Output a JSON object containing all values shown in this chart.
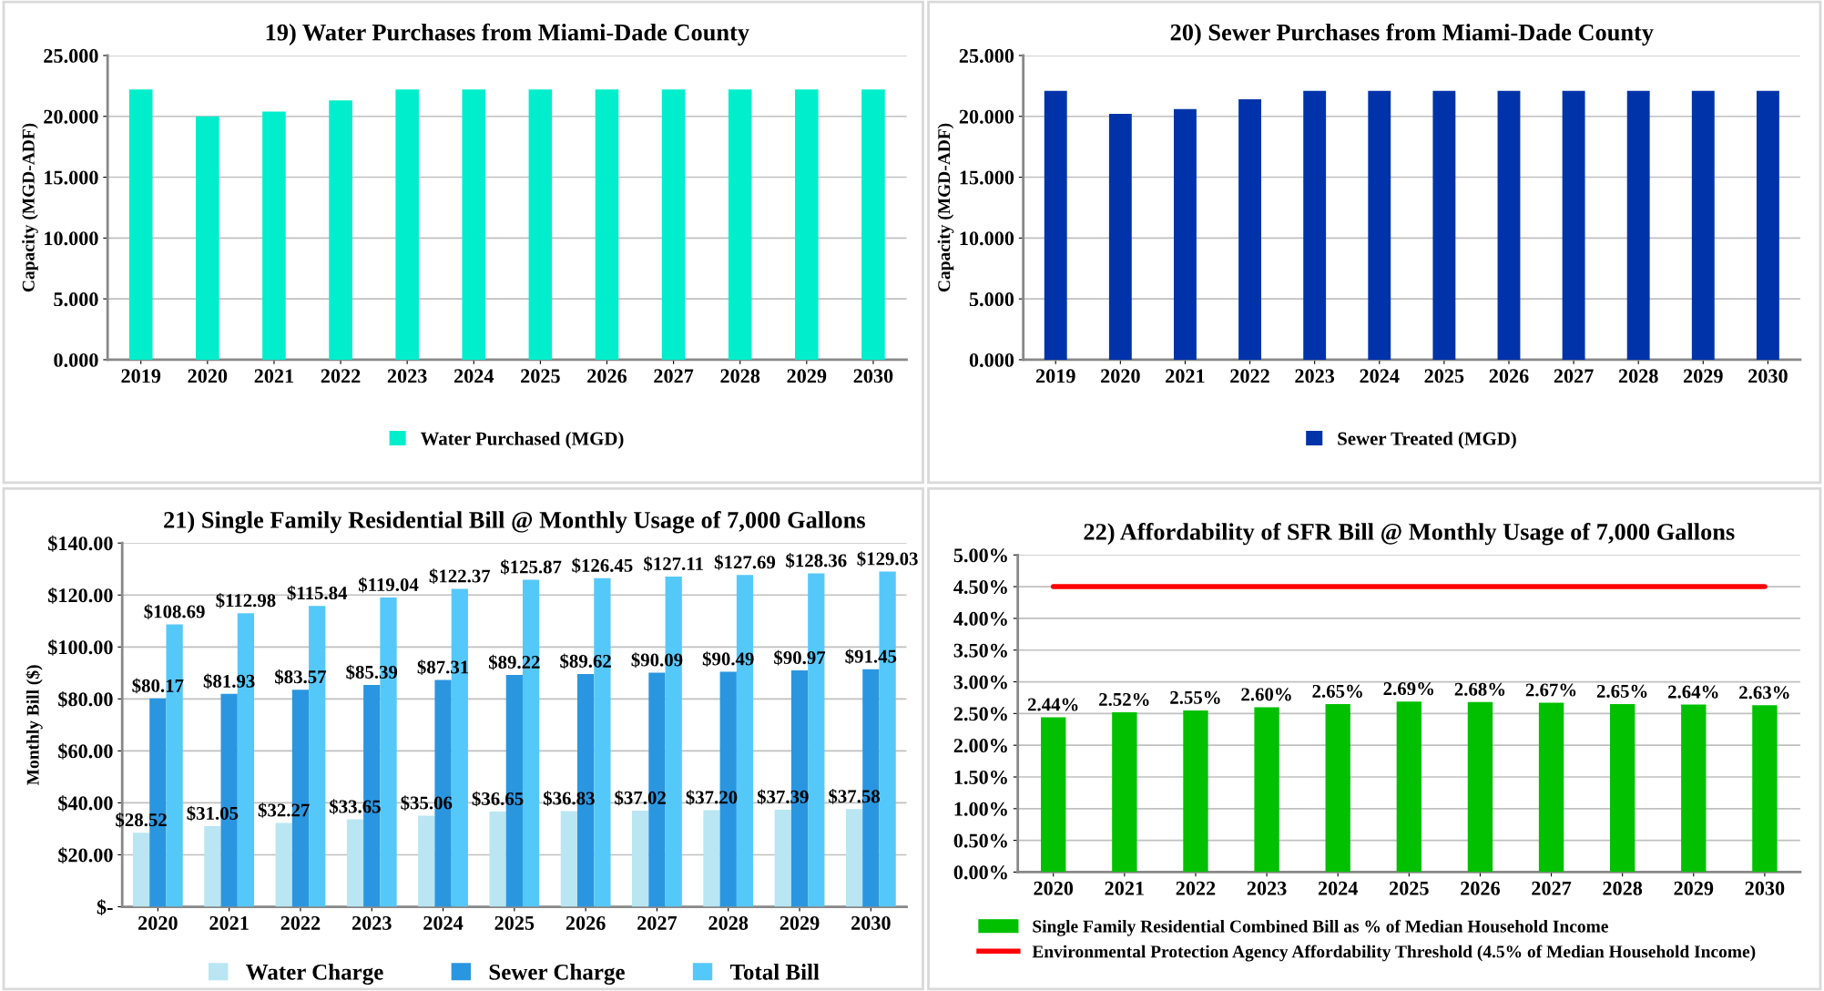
{
  "chart_data": [
    {
      "type": "bar",
      "title": "19) Water Purchases from Miami-Dade County",
      "ylabel": "Capacity (MGD-ADF)",
      "categories": [
        "2019",
        "2020",
        "2021",
        "2022",
        "2023",
        "2024",
        "2025",
        "2026",
        "2027",
        "2028",
        "2029",
        "2030"
      ],
      "series": [
        {
          "name": "Water Purchased (MGD)",
          "color": "#00eecc",
          "values": [
            22.2,
            20.0,
            20.4,
            21.3,
            22.2,
            22.2,
            22.2,
            22.2,
            22.2,
            22.2,
            22.2,
            22.2
          ]
        }
      ],
      "ylim": [
        0,
        25
      ],
      "yticks": [
        {
          "value": 0,
          "label": "0.000"
        },
        {
          "value": 5,
          "label": "5.000"
        },
        {
          "value": 10,
          "label": "10.000"
        },
        {
          "value": 15,
          "label": "15.000"
        },
        {
          "value": 20,
          "label": "20.000"
        },
        {
          "value": 25,
          "label": "25.000"
        }
      ],
      "grid": "y",
      "legend": "bottom"
    },
    {
      "type": "bar",
      "title": "20) Sewer Purchases from Miami-Dade County",
      "ylabel": "Capacity (MGD-ADF)",
      "categories": [
        "2019",
        "2020",
        "2021",
        "2022",
        "2023",
        "2024",
        "2025",
        "2026",
        "2027",
        "2028",
        "2029",
        "2030"
      ],
      "series": [
        {
          "name": "Sewer Treated (MGD)",
          "color": "#0033aa",
          "values": [
            22.1,
            20.2,
            20.6,
            21.4,
            22.1,
            22.1,
            22.1,
            22.1,
            22.1,
            22.1,
            22.1,
            22.1
          ]
        }
      ],
      "ylim": [
        0,
        25
      ],
      "yticks": [
        {
          "value": 0,
          "label": "0.000"
        },
        {
          "value": 5,
          "label": "5.000"
        },
        {
          "value": 10,
          "label": "10.000"
        },
        {
          "value": 15,
          "label": "15.000"
        },
        {
          "value": 20,
          "label": "20.000"
        },
        {
          "value": 25,
          "label": "25.000"
        }
      ],
      "grid": "y",
      "legend": "bottom"
    },
    {
      "type": "bar",
      "title": "21) Single Family Residential Bill @ Monthly Usage of 7,000 Gallons",
      "ylabel": "Monthly Bill ($)",
      "categories": [
        "2020",
        "2021",
        "2022",
        "2023",
        "2024",
        "2025",
        "2026",
        "2027",
        "2028",
        "2029",
        "2030"
      ],
      "series": [
        {
          "name": "Water Charge",
          "color": "#b9e6f2",
          "values": [
            28.52,
            31.05,
            32.27,
            33.65,
            35.06,
            36.65,
            36.83,
            37.02,
            37.2,
            37.39,
            37.58
          ],
          "value_labels": [
            "$28.52",
            "$31.05",
            "$32.27",
            "$33.65",
            "$35.06",
            "$36.65",
            "$36.83",
            "$37.02",
            "$37.20",
            "$37.39",
            "$37.58"
          ]
        },
        {
          "name": "Sewer Charge",
          "color": "#2a96e0",
          "values": [
            80.17,
            81.93,
            83.57,
            85.39,
            87.31,
            89.22,
            89.62,
            90.09,
            90.49,
            90.97,
            91.45
          ],
          "value_labels": [
            "$80.17",
            "$81.93",
            "$83.57",
            "$85.39",
            "$87.31",
            "$89.22",
            "$89.62",
            "$90.09",
            "$90.49",
            "$90.97",
            "$91.45"
          ]
        },
        {
          "name": "Total Bill",
          "color": "#55c8fa",
          "values": [
            108.69,
            112.98,
            115.84,
            119.04,
            122.37,
            125.87,
            126.45,
            127.11,
            127.69,
            128.36,
            129.03
          ],
          "value_labels": [
            "$108.69",
            "$112.98",
            "$115.84",
            "$119.04",
            "$122.37",
            "$125.87",
            "$126.45",
            "$127.11",
            "$127.69",
            "$128.36",
            "$129.03"
          ]
        }
      ],
      "ylim": [
        0,
        140
      ],
      "yticks": [
        {
          "value": 0,
          "label": "$-"
        },
        {
          "value": 20,
          "label": "$20.00"
        },
        {
          "value": 40,
          "label": "$40.00"
        },
        {
          "value": 60,
          "label": "$60.00"
        },
        {
          "value": 80,
          "label": "$80.00"
        },
        {
          "value": 100,
          "label": "$100.00"
        },
        {
          "value": 120,
          "label": "$120.00"
        },
        {
          "value": 140,
          "label": "$140.00"
        }
      ],
      "grid": "y",
      "legend": "bottom"
    },
    {
      "type": "bar",
      "title": "22) Affordability of SFR Bill @ Monthly Usage of 7,000 Gallons",
      "categories": [
        "2020",
        "2021",
        "2022",
        "2023",
        "2024",
        "2025",
        "2026",
        "2027",
        "2028",
        "2029",
        "2030"
      ],
      "series": [
        {
          "name": "Single Family Residential Combined Bill as % of Median Household Income",
          "color": "#00c000",
          "values": [
            2.44,
            2.52,
            2.55,
            2.6,
            2.65,
            2.69,
            2.68,
            2.67,
            2.65,
            2.64,
            2.63
          ],
          "value_labels": [
            "2.44%",
            "2.52%",
            "2.55%",
            "2.60%",
            "2.65%",
            "2.69%",
            "2.68%",
            "2.67%",
            "2.65%",
            "2.64%",
            "2.63%"
          ]
        },
        {
          "name": "Environmental Protection Agency Affordability Threshold (4.5% of Median Household Income)",
          "type": "line",
          "color": "#ff0000",
          "values": [
            4.5,
            4.5,
            4.5,
            4.5,
            4.5,
            4.5,
            4.5,
            4.5,
            4.5,
            4.5,
            4.5
          ]
        }
      ],
      "ylim": [
        0,
        5
      ],
      "yticks": [
        {
          "value": 0,
          "label": "0.00%"
        },
        {
          "value": 0.5,
          "label": "0.50%"
        },
        {
          "value": 1,
          "label": "1.00%"
        },
        {
          "value": 1.5,
          "label": "1.50%"
        },
        {
          "value": 2,
          "label": "2.00%"
        },
        {
          "value": 2.5,
          "label": "2.50%"
        },
        {
          "value": 3,
          "label": "3.00%"
        },
        {
          "value": 3.5,
          "label": "3.50%"
        },
        {
          "value": 4,
          "label": "4.00%"
        },
        {
          "value": 4.5,
          "label": "4.50%"
        },
        {
          "value": 5,
          "label": "5.00%"
        }
      ],
      "grid": "y",
      "legend": "bottom"
    }
  ]
}
